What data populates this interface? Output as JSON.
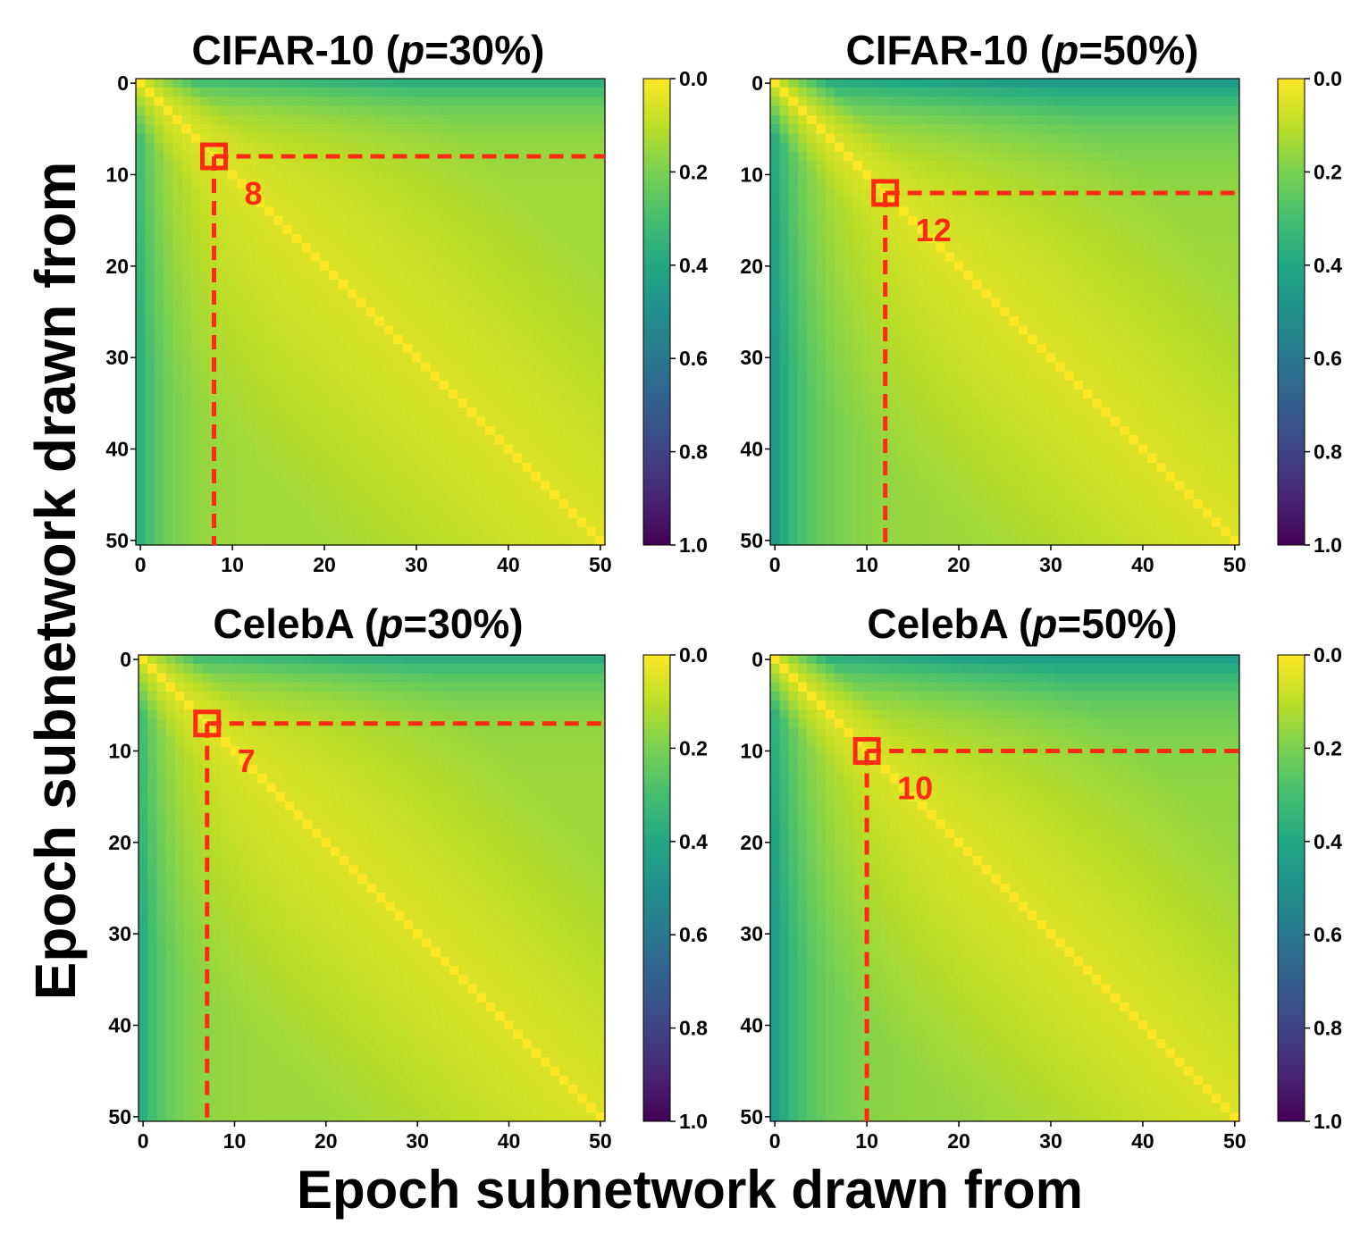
{
  "figure": {
    "xlabel": "Epoch subnetwork drawn from",
    "ylabel": "Epoch subnetwork drawn from"
  },
  "colors": {
    "marker": "#ff2a12",
    "colormap": "viridis (reversed: 0.0 = yellow, 1.0 = dark purple)"
  },
  "chart_data": [
    {
      "type": "heatmap",
      "title_prefix": "CIFAR-10 (",
      "title_var": "p",
      "title_suffix": "=30%)",
      "x_range": [
        0,
        50
      ],
      "y_range": [
        0,
        50
      ],
      "xticks": [
        "0",
        "10",
        "20",
        "30",
        "40",
        "50"
      ],
      "yticks": [
        "0",
        "10",
        "20",
        "30",
        "40",
        "50"
      ],
      "colorbar_ticks": [
        "0.0",
        "0.2",
        "0.4",
        "0.6",
        "0.8",
        "1.0"
      ],
      "colorbar_range": [
        0.0,
        1.0
      ],
      "value_model": {
        "diag": 0.0,
        "near_diag": 0.05,
        "far_from_diag": 0.14,
        "early_epoch_boost": 0.22,
        "early_decay_epochs": 3.0
      },
      "highlight_epoch": 8,
      "highlight_label": "8"
    },
    {
      "type": "heatmap",
      "title_prefix": "CIFAR-10 (",
      "title_var": "p",
      "title_suffix": "=50%)",
      "x_range": [
        0,
        50
      ],
      "y_range": [
        0,
        50
      ],
      "xticks": [
        "0",
        "10",
        "20",
        "30",
        "40",
        "50"
      ],
      "yticks": [
        "0",
        "10",
        "20",
        "30",
        "40",
        "50"
      ],
      "colorbar_ticks": [
        "0.0",
        "0.2",
        "0.4",
        "0.6",
        "0.8",
        "1.0"
      ],
      "colorbar_range": [
        0.0,
        1.0
      ],
      "value_model": {
        "diag": 0.0,
        "near_diag": 0.05,
        "far_from_diag": 0.15,
        "early_epoch_boost": 0.3,
        "early_decay_epochs": 4.0
      },
      "highlight_epoch": 12,
      "highlight_label": "12"
    },
    {
      "type": "heatmap",
      "title_prefix": "CelebA (",
      "title_var": "p",
      "title_suffix": "=30%)",
      "x_range": [
        0,
        50
      ],
      "y_range": [
        0,
        50
      ],
      "xticks": [
        "0",
        "10",
        "20",
        "30",
        "40",
        "50"
      ],
      "yticks": [
        "0",
        "10",
        "20",
        "30",
        "40",
        "50"
      ],
      "colorbar_ticks": [
        "0.0",
        "0.2",
        "0.4",
        "0.6",
        "0.8",
        "1.0"
      ],
      "colorbar_range": [
        0.0,
        1.0
      ],
      "value_model": {
        "diag": 0.0,
        "near_diag": 0.05,
        "far_from_diag": 0.15,
        "early_epoch_boost": 0.22,
        "early_decay_epochs": 3.0
      },
      "highlight_epoch": 7,
      "highlight_label": "7"
    },
    {
      "type": "heatmap",
      "title_prefix": "CelebA (",
      "title_var": "p",
      "title_suffix": "=50%)",
      "x_range": [
        0,
        50
      ],
      "y_range": [
        0,
        50
      ],
      "xticks": [
        "0",
        "10",
        "20",
        "30",
        "40",
        "50"
      ],
      "yticks": [
        "0",
        "10",
        "20",
        "30",
        "40",
        "50"
      ],
      "colorbar_ticks": [
        "0.0",
        "0.2",
        "0.4",
        "0.6",
        "0.8",
        "1.0"
      ],
      "colorbar_range": [
        0.0,
        1.0
      ],
      "value_model": {
        "diag": 0.0,
        "near_diag": 0.05,
        "far_from_diag": 0.16,
        "early_epoch_boost": 0.28,
        "early_decay_epochs": 4.0
      },
      "highlight_epoch": 10,
      "highlight_label": "10"
    }
  ]
}
